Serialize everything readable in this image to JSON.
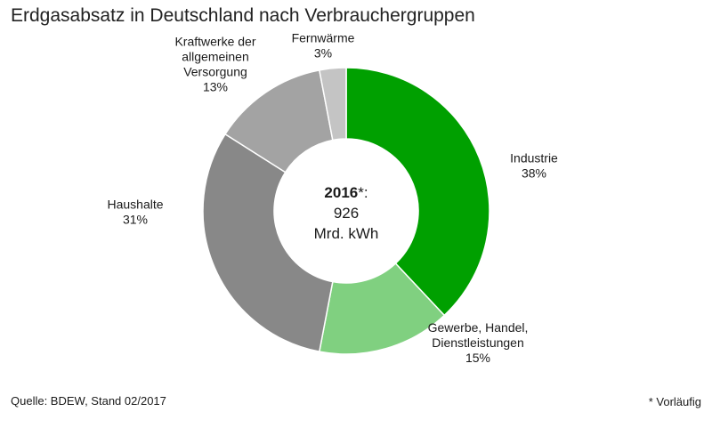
{
  "chart_data": {
    "type": "pie",
    "title": "Erdgasabsatz in Deutschland nach Verbrauchergruppen",
    "center": {
      "year": "2016",
      "mark": "*:",
      "value": "926",
      "unit": "Mrd. kWh"
    },
    "slices": [
      {
        "label_lines": [
          "Industrie"
        ],
        "value": 38,
        "pct_label": "38%",
        "color": "#00a000"
      },
      {
        "label_lines": [
          "Gewerbe, Handel,",
          "Dienstleistungen"
        ],
        "value": 15,
        "pct_label": "15%",
        "color": "#80d080"
      },
      {
        "label_lines": [
          "Haushalte"
        ],
        "value": 31,
        "pct_label": "31%",
        "color": "#888888"
      },
      {
        "label_lines": [
          "Kraftwerke der",
          "allgemeinen",
          "Versorgung"
        ],
        "value": 13,
        "pct_label": "13%",
        "color": "#a3a3a3"
      },
      {
        "label_lines": [
          "Fernwärme"
        ],
        "value": 3,
        "pct_label": "3%",
        "color": "#c4c4c4"
      }
    ]
  },
  "footer": {
    "source": "Quelle: BDEW, Stand 02/2017",
    "note": "* Vorläufig"
  }
}
